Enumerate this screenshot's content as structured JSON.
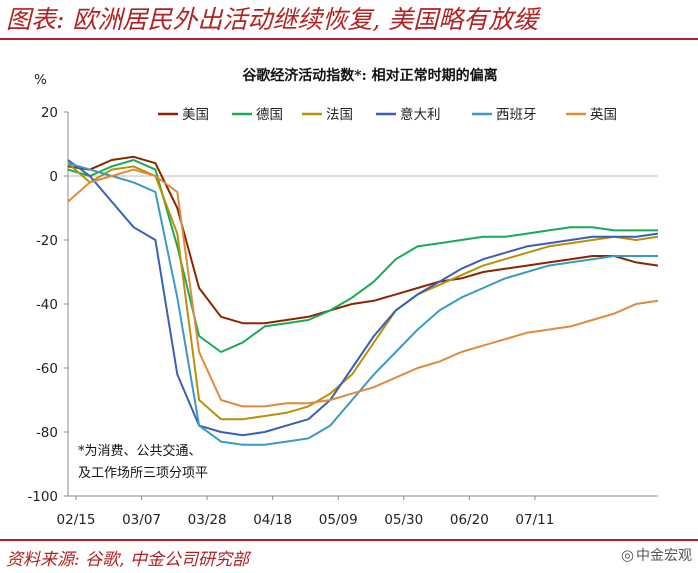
{
  "header": {
    "title": "图表: 欧洲居民外出活动继续恢复, 美国略有放缓"
  },
  "footer": {
    "source": "资料来源: 谷歌, 中金公司研究部",
    "watermark": "中金宏观"
  },
  "chart_data": {
    "type": "line",
    "title": "谷歌经济活动指数*: 相对正常时期的偏离",
    "ylabel": "%",
    "ylim": [
      -100,
      20
    ],
    "yticks": [
      "20",
      "0",
      "-20",
      "-40",
      "-60",
      "-80",
      "-100"
    ],
    "xticks": [
      "02/15",
      "03/07",
      "03/28",
      "04/18",
      "05/09",
      "05/30",
      "06/20",
      "07/11"
    ],
    "note": [
      "*为消费、公共交通、",
      "及工作场所三项分项平"
    ],
    "legend_position": "top",
    "grid": false,
    "series": [
      {
        "name": "美国",
        "color": "#8b2500",
        "values": [
          [
            0,
            3
          ],
          [
            7,
            2
          ],
          [
            14,
            5
          ],
          [
            21,
            6
          ],
          [
            28,
            4
          ],
          [
            35,
            -10
          ],
          [
            42,
            -35
          ],
          [
            49,
            -44
          ],
          [
            56,
            -46
          ],
          [
            63,
            -46
          ],
          [
            70,
            -45
          ],
          [
            77,
            -44
          ],
          [
            84,
            -42
          ],
          [
            91,
            -40
          ],
          [
            98,
            -39
          ],
          [
            105,
            -37
          ],
          [
            112,
            -35
          ],
          [
            119,
            -33
          ],
          [
            126,
            -32
          ],
          [
            133,
            -30
          ],
          [
            140,
            -29
          ],
          [
            147,
            -28
          ],
          [
            154,
            -27
          ],
          [
            161,
            -26
          ],
          [
            168,
            -25
          ],
          [
            175,
            -25
          ],
          [
            182,
            -27
          ],
          [
            189,
            -28
          ]
        ]
      },
      {
        "name": "德国",
        "color": "#1aaa55",
        "values": [
          [
            0,
            2
          ],
          [
            7,
            0
          ],
          [
            14,
            3
          ],
          [
            21,
            5
          ],
          [
            28,
            2
          ],
          [
            35,
            -22
          ],
          [
            42,
            -50
          ],
          [
            49,
            -55
          ],
          [
            56,
            -52
          ],
          [
            63,
            -47
          ],
          [
            70,
            -46
          ],
          [
            77,
            -45
          ],
          [
            84,
            -42
          ],
          [
            91,
            -38
          ],
          [
            98,
            -33
          ],
          [
            105,
            -26
          ],
          [
            112,
            -22
          ],
          [
            119,
            -21
          ],
          [
            126,
            -20
          ],
          [
            133,
            -19
          ],
          [
            140,
            -19
          ],
          [
            147,
            -18
          ],
          [
            154,
            -17
          ],
          [
            161,
            -16
          ],
          [
            168,
            -16
          ],
          [
            175,
            -17
          ],
          [
            182,
            -17
          ],
          [
            189,
            -17
          ]
        ]
      },
      {
        "name": "法国",
        "color": "#b8900b",
        "values": [
          [
            0,
            4
          ],
          [
            7,
            -2
          ],
          [
            14,
            2
          ],
          [
            21,
            3
          ],
          [
            28,
            0
          ],
          [
            35,
            -18
          ],
          [
            42,
            -70
          ],
          [
            49,
            -76
          ],
          [
            56,
            -76
          ],
          [
            63,
            -75
          ],
          [
            70,
            -74
          ],
          [
            77,
            -72
          ],
          [
            84,
            -68
          ],
          [
            91,
            -62
          ],
          [
            98,
            -52
          ],
          [
            105,
            -42
          ],
          [
            112,
            -37
          ],
          [
            119,
            -34
          ],
          [
            126,
            -31
          ],
          [
            133,
            -28
          ],
          [
            140,
            -26
          ],
          [
            147,
            -24
          ],
          [
            154,
            -22
          ],
          [
            161,
            -21
          ],
          [
            168,
            -20
          ],
          [
            175,
            -19
          ],
          [
            182,
            -20
          ],
          [
            189,
            -19
          ]
        ]
      },
      {
        "name": "意大利",
        "color": "#3b5fb5",
        "values": [
          [
            0,
            5
          ],
          [
            7,
            0
          ],
          [
            14,
            -8
          ],
          [
            21,
            -16
          ],
          [
            28,
            -20
          ],
          [
            35,
            -62
          ],
          [
            42,
            -78
          ],
          [
            49,
            -80
          ],
          [
            56,
            -81
          ],
          [
            63,
            -80
          ],
          [
            70,
            -78
          ],
          [
            77,
            -76
          ],
          [
            84,
            -70
          ],
          [
            91,
            -60
          ],
          [
            98,
            -50
          ],
          [
            105,
            -42
          ],
          [
            112,
            -37
          ],
          [
            119,
            -33
          ],
          [
            126,
            -29
          ],
          [
            133,
            -26
          ],
          [
            140,
            -24
          ],
          [
            147,
            -22
          ],
          [
            154,
            -21
          ],
          [
            161,
            -20
          ],
          [
            168,
            -19
          ],
          [
            175,
            -19
          ],
          [
            182,
            -19
          ],
          [
            189,
            -18
          ]
        ]
      },
      {
        "name": "西班牙",
        "color": "#3a9bbf",
        "values": [
          [
            0,
            4
          ],
          [
            7,
            2
          ],
          [
            14,
            0
          ],
          [
            21,
            -2
          ],
          [
            28,
            -5
          ],
          [
            35,
            -38
          ],
          [
            42,
            -78
          ],
          [
            49,
            -83
          ],
          [
            56,
            -84
          ],
          [
            63,
            -84
          ],
          [
            70,
            -83
          ],
          [
            77,
            -82
          ],
          [
            84,
            -78
          ],
          [
            91,
            -70
          ],
          [
            98,
            -62
          ],
          [
            105,
            -55
          ],
          [
            112,
            -48
          ],
          [
            119,
            -42
          ],
          [
            126,
            -38
          ],
          [
            133,
            -35
          ],
          [
            140,
            -32
          ],
          [
            147,
            -30
          ],
          [
            154,
            -28
          ],
          [
            161,
            -27
          ],
          [
            168,
            -26
          ],
          [
            175,
            -25
          ],
          [
            182,
            -25
          ],
          [
            189,
            -25
          ]
        ]
      },
      {
        "name": "英国",
        "color": "#e08a3c",
        "values": [
          [
            0,
            -8
          ],
          [
            7,
            -2
          ],
          [
            14,
            0
          ],
          [
            21,
            2
          ],
          [
            28,
            0
          ],
          [
            35,
            -5
          ],
          [
            42,
            -55
          ],
          [
            49,
            -70
          ],
          [
            56,
            -72
          ],
          [
            63,
            -72
          ],
          [
            70,
            -71
          ],
          [
            77,
            -71
          ],
          [
            84,
            -70
          ],
          [
            91,
            -68
          ],
          [
            98,
            -66
          ],
          [
            105,
            -63
          ],
          [
            112,
            -60
          ],
          [
            119,
            -58
          ],
          [
            126,
            -55
          ],
          [
            133,
            -53
          ],
          [
            140,
            -51
          ],
          [
            147,
            -49
          ],
          [
            154,
            -48
          ],
          [
            161,
            -47
          ],
          [
            168,
            -45
          ],
          [
            175,
            -43
          ],
          [
            182,
            -40
          ],
          [
            189,
            -39
          ]
        ]
      }
    ]
  }
}
